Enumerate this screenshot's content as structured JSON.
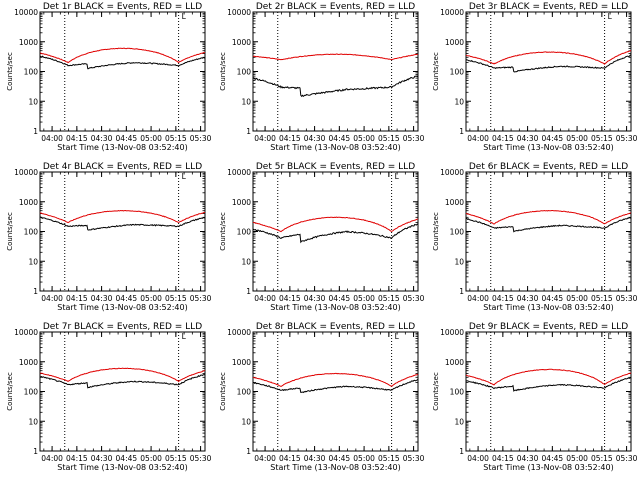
{
  "colors": {
    "events": "#000000",
    "lld": "#e00000",
    "axes": "#000000",
    "background": "#ffffff"
  },
  "chart_data": [
    {
      "type": "line",
      "title": "Det 1r BLACK = Events, RED = LLD",
      "xlabel": "Start Time (13-Nov-08 03:52:40)",
      "ylabel": "Counts/sec",
      "xticks": [
        "04:00",
        "04:15",
        "04:30",
        "04:45",
        "05:00",
        "05:15",
        "05:30"
      ],
      "yticks": [
        "1",
        "10",
        "100",
        "1000",
        "10000"
      ],
      "ylim": [
        1,
        10000
      ],
      "xlim_minutes": [
        0,
        100
      ],
      "dotted_lines_minutes": [
        15,
        84
      ],
      "marker_label": "L",
      "series": [
        {
          "name": "LLD",
          "color": "red",
          "base": 200,
          "peak": 600,
          "left": 420,
          "right": 440,
          "noise": 0.02
        },
        {
          "name": "Events",
          "color": "black",
          "base": 160,
          "peak": 200,
          "left": 330,
          "right": 300,
          "drops": [
            [
              29,
              0.7
            ],
            [
              57,
              0.72
            ]
          ],
          "noise": 0.04
        }
      ]
    },
    {
      "type": "line",
      "title": "Det 2r BLACK = Events, RED = LLD",
      "xlabel": "Start Time (13-Nov-08 03:52:40)",
      "ylabel": "Counts/sec",
      "xticks": [
        "04:00",
        "04:15",
        "04:30",
        "04:45",
        "05:00",
        "05:15",
        "05:30"
      ],
      "yticks": [
        "1",
        "10",
        "100",
        "1000",
        "10000"
      ],
      "ylim": [
        1,
        10000
      ],
      "xlim_minutes": [
        0,
        100
      ],
      "dotted_lines_minutes": [
        15,
        84
      ],
      "marker_label": "L",
      "series": [
        {
          "name": "LLD",
          "color": "red",
          "base": 250,
          "peak": 380,
          "left": 330,
          "right": 380,
          "noise": 0.02
        },
        {
          "name": "Events",
          "color": "black",
          "base": 30,
          "peak": 25,
          "left": 60,
          "right": 70,
          "drops": [
            [
              29,
              0.55
            ],
            [
              57,
              0.5
            ]
          ],
          "noise": 0.06
        }
      ]
    },
    {
      "type": "line",
      "title": "Det 3r BLACK = Events, RED = LLD",
      "xlabel": "Start Time (13-Nov-08 03:52:40)",
      "ylabel": "Counts/sec",
      "xticks": [
        "04:00",
        "04:15",
        "04:30",
        "04:45",
        "05:00",
        "05:15",
        "05:30"
      ],
      "yticks": [
        "1",
        "10",
        "100",
        "1000",
        "10000"
      ],
      "ylim": [
        1,
        10000
      ],
      "xlim_minutes": [
        0,
        100
      ],
      "dotted_lines_minutes": [
        15,
        84
      ],
      "marker_label": "L",
      "series": [
        {
          "name": "LLD",
          "color": "red",
          "base": 180,
          "peak": 450,
          "left": 350,
          "right": 500,
          "noise": 0.02
        },
        {
          "name": "Events",
          "color": "black",
          "base": 130,
          "peak": 150,
          "left": 250,
          "right": 350,
          "drops": [
            [
              29,
              0.7
            ],
            [
              57,
              0.65
            ]
          ],
          "noise": 0.04
        }
      ]
    },
    {
      "type": "line",
      "title": "Det 4r BLACK = Events, RED = LLD",
      "xlabel": "Start Time (13-Nov-08 03:52:40)",
      "ylabel": "Counts/sec",
      "xticks": [
        "04:00",
        "04:15",
        "04:30",
        "04:45",
        "05:00",
        "05:15",
        "05:30"
      ],
      "yticks": [
        "1",
        "10",
        "100",
        "1000",
        "10000"
      ],
      "ylim": [
        1,
        10000
      ],
      "xlim_minutes": [
        0,
        100
      ],
      "dotted_lines_minutes": [
        15,
        84
      ],
      "marker_label": "L",
      "series": [
        {
          "name": "LLD",
          "color": "red",
          "base": 200,
          "peak": 500,
          "left": 420,
          "right": 440,
          "noise": 0.02
        },
        {
          "name": "Events",
          "color": "black",
          "base": 150,
          "peak": 170,
          "left": 300,
          "right": 300,
          "drops": [
            [
              29,
              0.7
            ],
            [
              57,
              0.72
            ]
          ],
          "noise": 0.04
        }
      ]
    },
    {
      "type": "line",
      "title": "Det 5r BLACK = Events, RED = LLD",
      "xlabel": "Start Time (13-Nov-08 03:52:40)",
      "ylabel": "Counts/sec",
      "xticks": [
        "04:00",
        "04:15",
        "04:30",
        "04:45",
        "05:00",
        "05:15",
        "05:30"
      ],
      "yticks": [
        "1",
        "10",
        "100",
        "1000",
        "10000"
      ],
      "ylim": [
        1,
        10000
      ],
      "xlim_minutes": [
        0,
        100
      ],
      "dotted_lines_minutes": [
        15,
        84
      ],
      "marker_label": "L",
      "series": [
        {
          "name": "LLD",
          "color": "red",
          "base": 100,
          "peak": 300,
          "left": 200,
          "right": 260,
          "noise": 0.02
        },
        {
          "name": "Events",
          "color": "black",
          "base": 60,
          "peak": 100,
          "left": 120,
          "right": 180,
          "drops": [
            [
              29,
              0.55
            ],
            [
              57,
              0.6
            ]
          ],
          "noise": 0.05
        }
      ]
    },
    {
      "type": "line",
      "title": "Det 6r BLACK = Events, RED = LLD",
      "xlabel": "Start Time (13-Nov-08 03:52:40)",
      "ylabel": "Counts/sec",
      "xticks": [
        "04:00",
        "04:15",
        "04:30",
        "04:45",
        "05:00",
        "05:15",
        "05:30"
      ],
      "yticks": [
        "1",
        "10",
        "100",
        "1000",
        "10000"
      ],
      "ylim": [
        1,
        10000
      ],
      "xlim_minutes": [
        0,
        100
      ],
      "dotted_lines_minutes": [
        15,
        84
      ],
      "marker_label": "L",
      "series": [
        {
          "name": "LLD",
          "color": "red",
          "base": 180,
          "peak": 500,
          "left": 400,
          "right": 420,
          "noise": 0.02
        },
        {
          "name": "Events",
          "color": "black",
          "base": 130,
          "peak": 160,
          "left": 270,
          "right": 300,
          "drops": [
            [
              29,
              0.7
            ],
            [
              57,
              0.7
            ]
          ],
          "noise": 0.04
        }
      ]
    },
    {
      "type": "line",
      "title": "Det 7r BLACK = Events, RED = LLD",
      "xlabel": "Start Time (13-Nov-08 03:52:40)",
      "ylabel": "Counts/sec",
      "xticks": [
        "04:00",
        "04:15",
        "04:30",
        "04:45",
        "05:00",
        "05:15",
        "05:30"
      ],
      "yticks": [
        "1",
        "10",
        "100",
        "1000",
        "10000"
      ],
      "ylim": [
        1,
        10000
      ],
      "xlim_minutes": [
        0,
        100
      ],
      "dotted_lines_minutes": [
        15,
        84
      ],
      "marker_label": "L",
      "series": [
        {
          "name": "LLD",
          "color": "red",
          "base": 220,
          "peak": 600,
          "left": 420,
          "right": 500,
          "noise": 0.02
        },
        {
          "name": "Events",
          "color": "black",
          "base": 170,
          "peak": 220,
          "left": 320,
          "right": 380,
          "drops": [
            [
              29,
              0.7
            ],
            [
              57,
              0.72
            ]
          ],
          "noise": 0.04
        }
      ]
    },
    {
      "type": "line",
      "title": "Det 8r BLACK = Events, RED = LLD",
      "xlabel": "Start Time (13-Nov-08 03:52:40)",
      "ylabel": "Counts/sec",
      "xticks": [
        "04:00",
        "04:15",
        "04:30",
        "04:45",
        "05:00",
        "05:15",
        "05:30"
      ],
      "yticks": [
        "1",
        "10",
        "100",
        "1000",
        "10000"
      ],
      "ylim": [
        1,
        10000
      ],
      "xlim_minutes": [
        0,
        100
      ],
      "dotted_lines_minutes": [
        15,
        84
      ],
      "marker_label": "L",
      "series": [
        {
          "name": "LLD",
          "color": "red",
          "base": 150,
          "peak": 400,
          "left": 300,
          "right": 380,
          "noise": 0.02
        },
        {
          "name": "Events",
          "color": "black",
          "base": 110,
          "peak": 150,
          "left": 200,
          "right": 250,
          "drops": [
            [
              29,
              0.7
            ],
            [
              57,
              0.7
            ]
          ],
          "noise": 0.04
        }
      ]
    },
    {
      "type": "line",
      "title": "Det 9r BLACK = Events, RED = LLD",
      "xlabel": "Start Time (13-Nov-08 03:52:40)",
      "ylabel": "Counts/sec",
      "xticks": [
        "04:00",
        "04:15",
        "04:30",
        "04:45",
        "05:00",
        "05:15",
        "05:30"
      ],
      "yticks": [
        "1",
        "10",
        "100",
        "1000",
        "10000"
      ],
      "ylim": [
        1,
        10000
      ],
      "xlim_minutes": [
        0,
        100
      ],
      "dotted_lines_minutes": [
        15,
        84
      ],
      "marker_label": "L",
      "series": [
        {
          "name": "LLD",
          "color": "red",
          "base": 170,
          "peak": 550,
          "left": 350,
          "right": 420,
          "noise": 0.02
        },
        {
          "name": "Events",
          "color": "black",
          "base": 130,
          "peak": 170,
          "left": 230,
          "right": 300,
          "drops": [
            [
              29,
              0.7
            ],
            [
              57,
              0.7
            ]
          ],
          "noise": 0.04
        }
      ]
    }
  ]
}
